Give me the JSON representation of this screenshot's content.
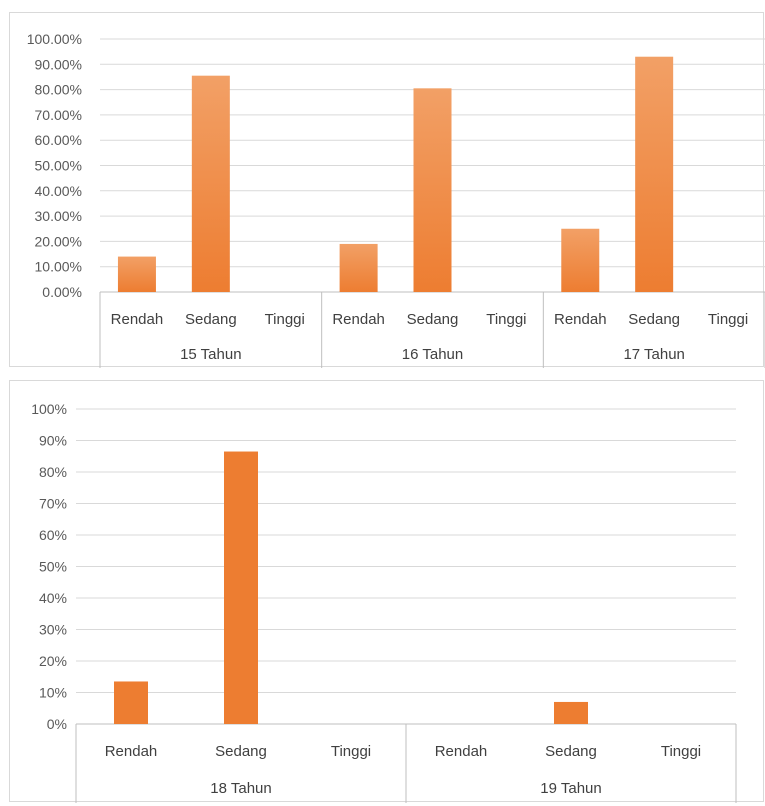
{
  "colors": {
    "bar": "#ed7d31",
    "bar_light": "#f2a066",
    "grid": "#d9d9d9",
    "axis": "#bfbfbf"
  },
  "chart_data": [
    {
      "type": "bar",
      "y_tick_labels": [
        "0.00%",
        "10.00%",
        "20.00%",
        "30.00%",
        "40.00%",
        "50.00%",
        "60.00%",
        "70.00%",
        "80.00%",
        "90.00%",
        "100.00%"
      ],
      "ylim": [
        0,
        100
      ],
      "grid": true,
      "groups": [
        {
          "label": "15 Tahun",
          "categories": [
            "Rendah",
            "Sedang",
            "Tinggi"
          ],
          "values": [
            14.0,
            85.5,
            0
          ]
        },
        {
          "label": "16 Tahun",
          "categories": [
            "Rendah",
            "Sedang",
            "Tinggi"
          ],
          "values": [
            19.0,
            80.5,
            0
          ]
        },
        {
          "label": "17 Tahun",
          "categories": [
            "Rendah",
            "Sedang",
            "Tinggi"
          ],
          "values": [
            25.0,
            93.0,
            0
          ]
        }
      ]
    },
    {
      "type": "bar",
      "y_tick_labels": [
        "0%",
        "10%",
        "20%",
        "30%",
        "40%",
        "50%",
        "60%",
        "70%",
        "80%",
        "90%",
        "100%"
      ],
      "ylim": [
        0,
        100
      ],
      "grid": true,
      "groups": [
        {
          "label": "18 Tahun",
          "categories": [
            "Rendah",
            "Sedang",
            "Tinggi"
          ],
          "values": [
            13.5,
            86.5,
            0
          ]
        },
        {
          "label": "19 Tahun",
          "categories": [
            "Rendah",
            "Sedang",
            "Tinggi"
          ],
          "values": [
            0,
            7.0,
            0
          ]
        }
      ]
    }
  ]
}
